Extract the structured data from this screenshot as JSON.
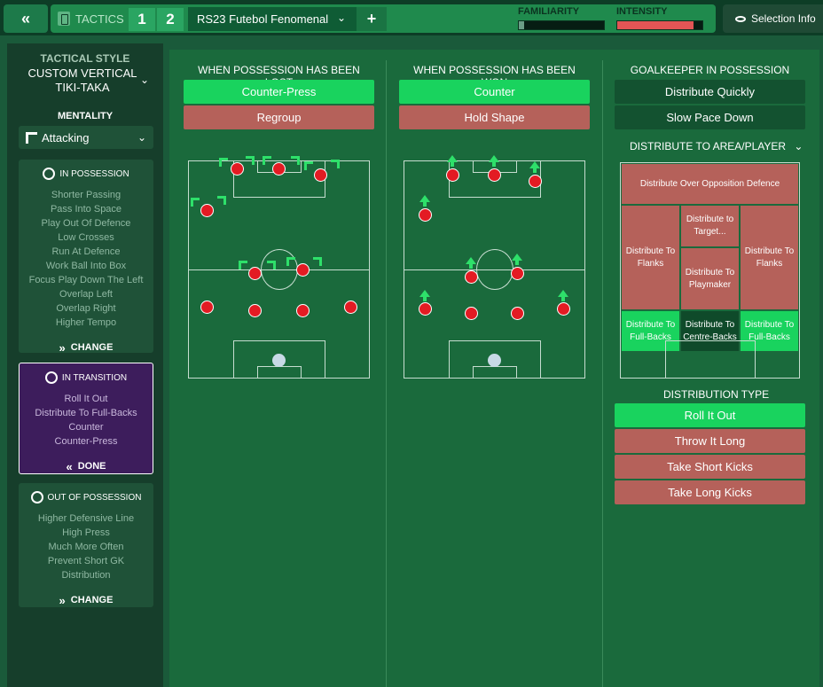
{
  "topbar": {
    "back_label": "«",
    "tactics_label": "TACTICS",
    "tactic_slot_1": "1",
    "tactic_slot_2": "2",
    "tactic_name": "RS23 Futebol Fenomenal",
    "add_label": "+",
    "familiarity_label": "FAMILIARITY",
    "intensity_label": "INTENSITY",
    "familiarity_level": 0.06,
    "intensity_level": 0.9,
    "selection_info_label": "Selection Info"
  },
  "sidebar": {
    "tactical_style_title": "TACTICAL STYLE",
    "tactical_style_name": "CUSTOM VERTICAL TIKI-TAKA",
    "mentality_title": "MENTALITY",
    "mentality_value": "Attacking",
    "in_possession": {
      "title": "IN POSSESSION",
      "items": [
        "Shorter Passing",
        "Pass Into Space",
        "Play Out Of Defence",
        "Low Crosses",
        "Run At Defence",
        "Work Ball Into Box",
        "Focus Play Down The Left",
        "Overlap Left",
        "Overlap Right",
        "Higher Tempo"
      ],
      "button": "CHANGE"
    },
    "in_transition": {
      "title": "IN TRANSITION",
      "items": [
        "Roll It Out",
        "Distribute To Full-Backs",
        "Counter",
        "Counter-Press"
      ],
      "button": "DONE"
    },
    "out_of_possession": {
      "title": "OUT OF POSSESSION",
      "items": [
        "Higher Defensive Line",
        "High Press",
        "Much More Often",
        "Prevent Short GK",
        "Distribution"
      ],
      "button": "CHANGE"
    }
  },
  "lost": {
    "title": "WHEN POSSESSION HAS BEEN LOST",
    "opt1": "Counter-Press",
    "opt2": "Regroup"
  },
  "won": {
    "title": "WHEN POSSESSION HAS BEEN WON",
    "opt1": "Counter",
    "opt2": "Hold Shape"
  },
  "gk": {
    "title": "GOALKEEPER IN POSSESSION",
    "opt1": "Distribute Quickly",
    "opt2": "Slow Pace Down",
    "area_title": "DISTRIBUTE TO AREA/PLAYER",
    "zones": {
      "opposition": "Distribute Over Opposition Defence",
      "target": "Distribute to Target...",
      "flanks_left": "Distribute To Flanks",
      "flanks_right": "Distribute To Flanks",
      "playmaker": "Distribute To Playmaker",
      "fb_left": "Distribute To Full-Backs",
      "cb": "Distribute To Centre-Backs",
      "fb_right": "Distribute To Full-Backs"
    },
    "dist_type_title": "DISTRIBUTION TYPE",
    "types": [
      "Roll It Out",
      "Throw It Long",
      "Take Short Kicks",
      "Take Long Kicks"
    ]
  },
  "colors": {
    "selected_green": "#19d35e",
    "unselected_red": "#b5615a",
    "player_red": "#e31b23",
    "transition_purple": "#3d1d5c"
  }
}
